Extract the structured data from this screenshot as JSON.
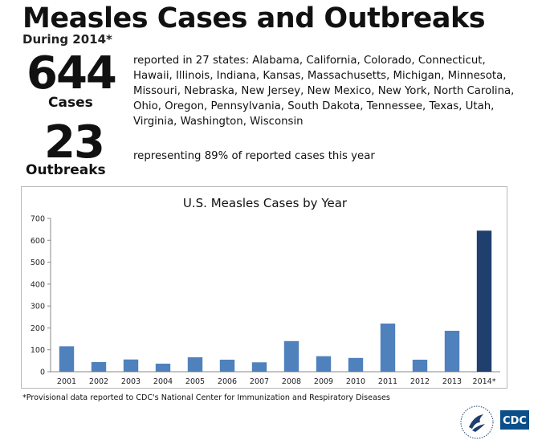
{
  "header": {
    "title": "Measles Cases and Outbreaks",
    "subtitle": "During 2014*"
  },
  "cases": {
    "number": "644",
    "label": "Cases",
    "description": "reported in 27 states: Alabama, California, Colorado, Connecticut, Hawaii, Illinois, Indiana, Kansas, Massachusetts, Michigan, Minnesota, Missouri, Nebraska, New Jersey, New Mexico, New York, North Carolina, Ohio, Oregon, Pennsylvania, South Dakota, Tennessee, Texas, Utah, Virginia, Washington, Wisconsin"
  },
  "outbreaks": {
    "number": "23",
    "label": "Outbreaks",
    "description": "representing 89% of reported cases this year"
  },
  "chart_data": {
    "type": "bar",
    "title": "U.S. Measles Cases by Year",
    "xlabel": "",
    "ylabel": "",
    "categories": [
      "2001",
      "2002",
      "2003",
      "2004",
      "2005",
      "2006",
      "2007",
      "2008",
      "2009",
      "2010",
      "2011",
      "2012",
      "2013",
      "2014*"
    ],
    "values": [
      116,
      44,
      56,
      37,
      66,
      55,
      43,
      140,
      71,
      63,
      220,
      55,
      187,
      644
    ],
    "ylim": [
      0,
      700
    ],
    "yticks": [
      0,
      100,
      200,
      300,
      400,
      500,
      600,
      700
    ],
    "grid": false,
    "legend": "none",
    "colors": {
      "bar": "#4f81bd",
      "highlight": "#1f3f6e"
    },
    "highlight_index": 13
  },
  "footnote": "*Provisional data reported to CDC's National Center for Immunization and Respiratory Diseases",
  "logos": {
    "hhs": "hhs-eagle-icon",
    "cdc": "CDC"
  }
}
